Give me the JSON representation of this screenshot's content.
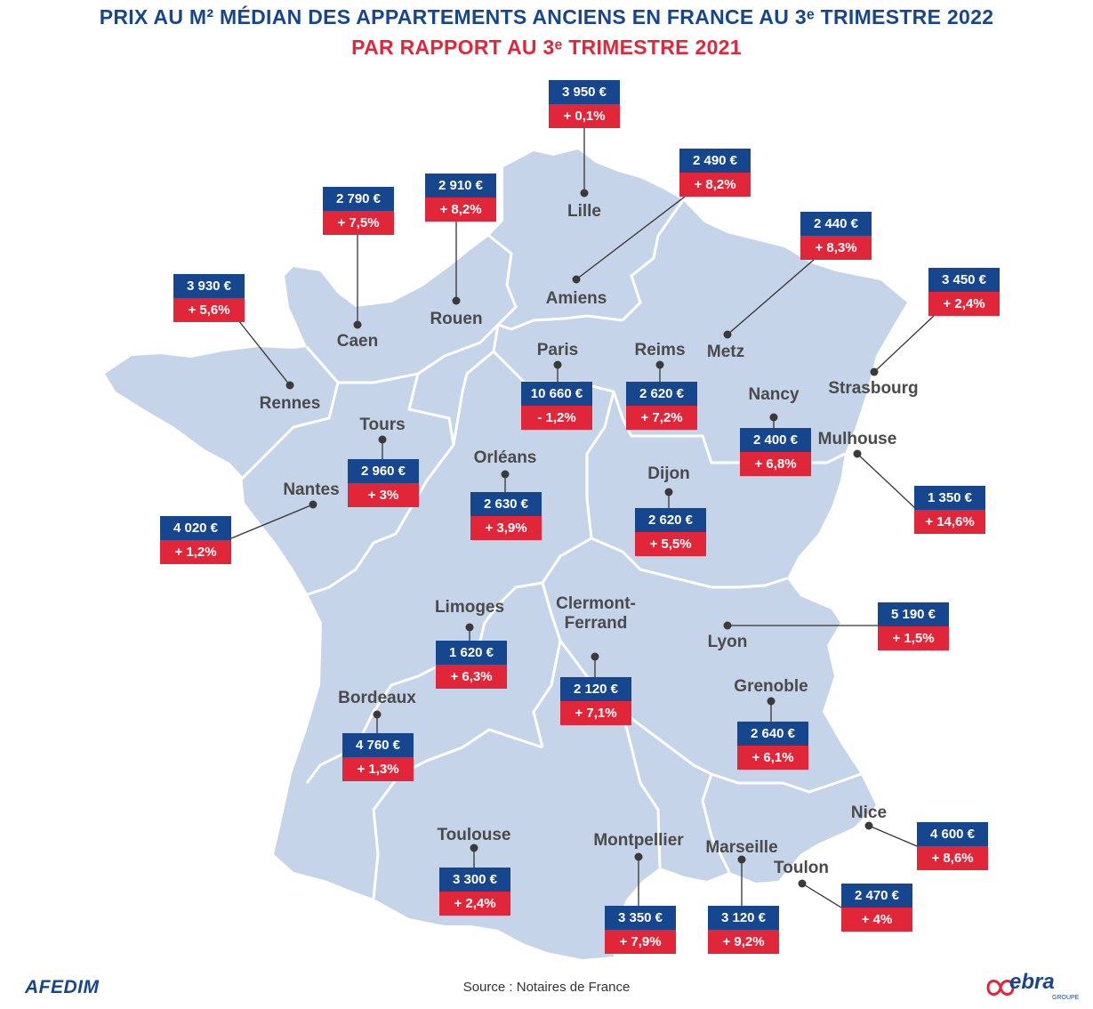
{
  "title": "PRIX AU M² MÉDIAN DES APPARTEMENTS ANCIENS EN FRANCE AU 3ᵉ TRIMESTRE 2022",
  "subtitle": "PAR RAPPORT AU 3ᵉ TRIMESTRE 2021",
  "source": "Source : Notaires de France",
  "logos": {
    "left": "AFEDIM",
    "right": "ebra",
    "right_sub": "GROUPE"
  },
  "colors": {
    "title": "#16468e",
    "subtitle": "#e1263a",
    "price_box": "#16468e",
    "change_box": "#e1263a",
    "land": "#c5d4e8"
  },
  "cities": [
    {
      "name": "Lille",
      "price": "3 950 €",
      "change": "+ 0,1%"
    },
    {
      "name": "Amiens",
      "price": "2 490 €",
      "change": "+ 8,2%"
    },
    {
      "name": "Rouen",
      "price": "2 910 €",
      "change": "+ 8,2%"
    },
    {
      "name": "Caen",
      "price": "2 790 €",
      "change": "+ 7,5%"
    },
    {
      "name": "Rennes",
      "price": "3 930 €",
      "change": "+ 5,6%"
    },
    {
      "name": "Metz",
      "price": "2 440 €",
      "change": "+ 8,3%"
    },
    {
      "name": "Strasbourg",
      "price": "3 450 €",
      "change": "+ 2,4%"
    },
    {
      "name": "Paris",
      "price": "10 660 €",
      "change": "- 1,2%"
    },
    {
      "name": "Reims",
      "price": "2 620 €",
      "change": "+ 7,2%"
    },
    {
      "name": "Nancy",
      "price": "2 400 €",
      "change": "+ 6,8%"
    },
    {
      "name": "Mulhouse",
      "price": "1 350 €",
      "change": "+ 14,6%"
    },
    {
      "name": "Tours",
      "price": "2 960 €",
      "change": "+ 3%"
    },
    {
      "name": "Nantes",
      "price": "4 020 €",
      "change": "+ 1,2%"
    },
    {
      "name": "Orléans",
      "price": "2 630 €",
      "change": "+ 3,9%"
    },
    {
      "name": "Dijon",
      "price": "2 620 €",
      "change": "+ 5,5%"
    },
    {
      "name": "Limoges",
      "price": "1 620 €",
      "change": "+ 6,3%"
    },
    {
      "name": "Clermont-Ferrand",
      "price": "2 120 €",
      "change": "+ 7,1%"
    },
    {
      "name": "Lyon",
      "price": "5 190 €",
      "change": "+ 1,5%"
    },
    {
      "name": "Grenoble",
      "price": "2 640 €",
      "change": "+ 6,1%"
    },
    {
      "name": "Bordeaux",
      "price": "4 760 €",
      "change": "+ 1,3%"
    },
    {
      "name": "Nice",
      "price": "4 600 €",
      "change": "+ 8,6%"
    },
    {
      "name": "Toulouse",
      "price": "3 300 €",
      "change": "+ 2,4%"
    },
    {
      "name": "Montpellier",
      "price": "3 350 €",
      "change": "+ 7,9%"
    },
    {
      "name": "Marseille",
      "price": "3 120 €",
      "change": "+ 9,2%"
    },
    {
      "name": "Toulon",
      "price": "2 470 €",
      "change": "+ 4%"
    }
  ]
}
